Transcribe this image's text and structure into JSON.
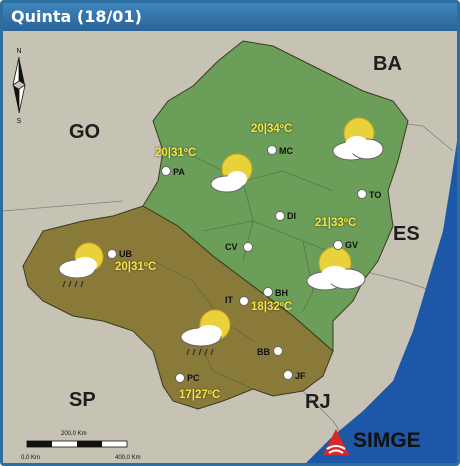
{
  "title": "Quinta (18/01)",
  "states": {
    "go": "GO",
    "ba": "BA",
    "es": "ES",
    "sp": "SP",
    "rj": "RJ"
  },
  "forecasts": [
    {
      "id": "mc",
      "temp": "20|34ºC",
      "icon": "sun-behind-cloud-icon"
    },
    {
      "id": "pa",
      "temp": "20|31ºC",
      "icon": "sun-behind-cloud-icon"
    },
    {
      "id": "gv",
      "temp": "21|33ºC",
      "icon": "sun-behind-cloud-icon"
    },
    {
      "id": "ub",
      "temp": "20|31ºC",
      "icon": "sun-cloud-rain-icon"
    },
    {
      "id": "bh",
      "temp": "18|32ºC",
      "icon": "sun-behind-cloud-icon"
    },
    {
      "id": "pc",
      "temp": "17|27ºC",
      "icon": "sun-cloud-rain-icon"
    }
  ],
  "cities": {
    "mc": "MC",
    "pa": "PA",
    "to": "TO",
    "di": "DI",
    "cv": "CV",
    "gv": "GV",
    "ub": "UB",
    "bh": "BH",
    "it": "IT",
    "bb": "BB",
    "pc": "PC",
    "jf": "JF"
  },
  "compass": {
    "north": "N",
    "south": "S"
  },
  "scale": {
    "mid": "200,0 Km",
    "start": "0,0 Km",
    "end": "400,0 Km"
  },
  "logo": {
    "text": "SIMGE"
  },
  "colors": {
    "green_region": "#6b9e58",
    "olive_region": "#8a7a3a",
    "ocean": "#1d57a8",
    "temp_text": "#f5e63a",
    "title_bar": "#2f74ad"
  }
}
